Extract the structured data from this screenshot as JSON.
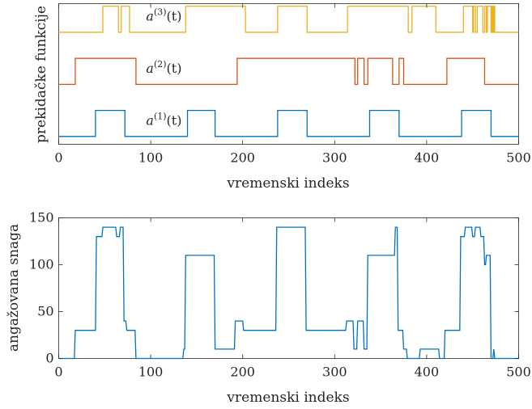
{
  "chart_data": [
    {
      "type": "line",
      "subtype": "step",
      "xlabel": "vremenski indeks",
      "ylabel": "prekidačke funkcije",
      "xlim": [
        0,
        500
      ],
      "xticks": [
        0,
        100,
        200,
        300,
        400,
        500
      ],
      "ylim": [
        -0.3,
        5.1
      ],
      "yticks_shown": false,
      "grid": false,
      "series": [
        {
          "name": "a^(1)(t)",
          "annotation": {
            "base": "a",
            "sup": "(1)",
            "arg": "(t)"
          },
          "color": "#0072BD",
          "offset": 0,
          "on_intervals": [
            [
              40,
              72
            ],
            [
              140,
              170
            ],
            [
              238,
              270
            ],
            [
              338,
              370
            ],
            [
              438,
              470
            ]
          ]
        },
        {
          "name": "a^(2)(t)",
          "annotation": {
            "base": "a",
            "sup": "(2)",
            "arg": "(t)"
          },
          "color": "#D95319",
          "offset": 2,
          "on_intervals": [
            [
              18,
              84
            ],
            [
              194,
              322
            ],
            [
              325,
              332
            ],
            [
              336,
              363
            ],
            [
              370,
              375
            ],
            [
              422,
              463
            ]
          ]
        },
        {
          "name": "a^(3)(t)",
          "annotation": {
            "base": "a",
            "sup": "(3)",
            "arg": "(t)"
          },
          "color": "#EDB120",
          "offset": 4,
          "on_intervals": [
            [
              48,
              65
            ],
            [
              68,
              77
            ],
            [
              138,
              203
            ],
            [
              238,
              270
            ],
            [
              314,
              380
            ],
            [
              384,
              410
            ],
            [
              440,
              450
            ],
            [
              451,
              453
            ],
            [
              455,
              461
            ],
            [
              463,
              465
            ],
            [
              466,
              470
            ],
            [
              471,
              472
            ],
            [
              473,
              474
            ]
          ]
        }
      ]
    },
    {
      "type": "line",
      "subtype": "step",
      "xlabel": "vremenski indeks",
      "ylabel": "angažovana snaga",
      "xlim": [
        0,
        500
      ],
      "ylim": [
        0,
        150
      ],
      "xticks": [
        0,
        100,
        200,
        300,
        400,
        500
      ],
      "yticks": [
        0,
        50,
        100,
        150
      ],
      "grid": false,
      "series": [
        {
          "color": "#0072BD",
          "points": [
            [
              0,
              0
            ],
            [
              17,
              0
            ],
            [
              18,
              30
            ],
            [
              40,
              30
            ],
            [
              41,
              130
            ],
            [
              47,
              130
            ],
            [
              48,
              140
            ],
            [
              62,
              140
            ],
            [
              63,
              130
            ],
            [
              66,
              130
            ],
            [
              67,
              140
            ],
            [
              70,
              140
            ],
            [
              71,
              40
            ],
            [
              73,
              40
            ],
            [
              74,
              30
            ],
            [
              77,
              30
            ],
            [
              78,
              30
            ],
            [
              83,
              30
            ],
            [
              84,
              0
            ],
            [
              135,
              0
            ],
            [
              136,
              10
            ],
            [
              137,
              10
            ],
            [
              138,
              110
            ],
            [
              169,
              110
            ],
            [
              170,
              10
            ],
            [
              191,
              10
            ],
            [
              192,
              40
            ],
            [
              200,
              40
            ],
            [
              201,
              30
            ],
            [
              236,
              30
            ],
            [
              237,
              140
            ],
            [
              268,
              140
            ],
            [
              269,
              30
            ],
            [
              312,
              30
            ],
            [
              313,
              40
            ],
            [
              320,
              40
            ],
            [
              321,
              10
            ],
            [
              324,
              10
            ],
            [
              325,
              40
            ],
            [
              331,
              40
            ],
            [
              332,
              10
            ],
            [
              335,
              10
            ],
            [
              336,
              110
            ],
            [
              365,
              110
            ],
            [
              366,
              140
            ],
            [
              368,
              140
            ],
            [
              369,
              30
            ],
            [
              374,
              30
            ],
            [
              375,
              10
            ],
            [
              378,
              10
            ],
            [
              379,
              0
            ],
            [
              392,
              0
            ],
            [
              393,
              10
            ],
            [
              413,
              10
            ],
            [
              414,
              0
            ],
            [
              419,
              0
            ],
            [
              420,
              30
            ],
            [
              436,
              30
            ],
            [
              437,
              130
            ],
            [
              441,
              130
            ],
            [
              442,
              140
            ],
            [
              449,
              140
            ],
            [
              450,
              130
            ],
            [
              452,
              130
            ],
            [
              453,
              140
            ],
            [
              458,
              140
            ],
            [
              459,
              130
            ],
            [
              462,
              130
            ],
            [
              463,
              100
            ],
            [
              464,
              100
            ],
            [
              465,
              110
            ],
            [
              469,
              110
            ],
            [
              470,
              0
            ],
            [
              472,
              0
            ],
            [
              473,
              10
            ],
            [
              474,
              0
            ],
            [
              500,
              0
            ]
          ]
        }
      ]
    }
  ]
}
